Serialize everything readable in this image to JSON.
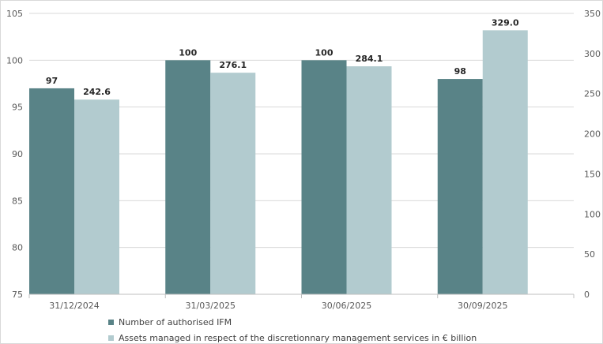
{
  "chart_data": {
    "type": "bar",
    "categories": [
      "31/12/2024",
      "31/03/2025",
      "30/06/2025",
      "30/09/2025"
    ],
    "series": [
      {
        "name": "Number of authorised IFM",
        "values": [
          97,
          100,
          100,
          98
        ],
        "labels": [
          "97",
          "100",
          "100",
          "98"
        ],
        "axis": "left",
        "color": "#598387"
      },
      {
        "name": "Assets managed in respect of the discretionnary management services in € billion",
        "values": [
          242.6,
          276.1,
          284.1,
          329.0
        ],
        "labels": [
          "242.6",
          "276.1",
          "284.1",
          "329.0"
        ],
        "axis": "right",
        "color": "#b2cbcf"
      }
    ],
    "y_left": {
      "min": 75,
      "max": 105,
      "ticks": [
        "75",
        "80",
        "85",
        "90",
        "95",
        "100",
        "105"
      ]
    },
    "y_right": {
      "min": 0,
      "max": 350,
      "ticks": [
        "0",
        "50",
        "100",
        "150",
        "200",
        "250",
        "300",
        "350"
      ]
    },
    "grid": true,
    "legend_position": "bottom"
  }
}
